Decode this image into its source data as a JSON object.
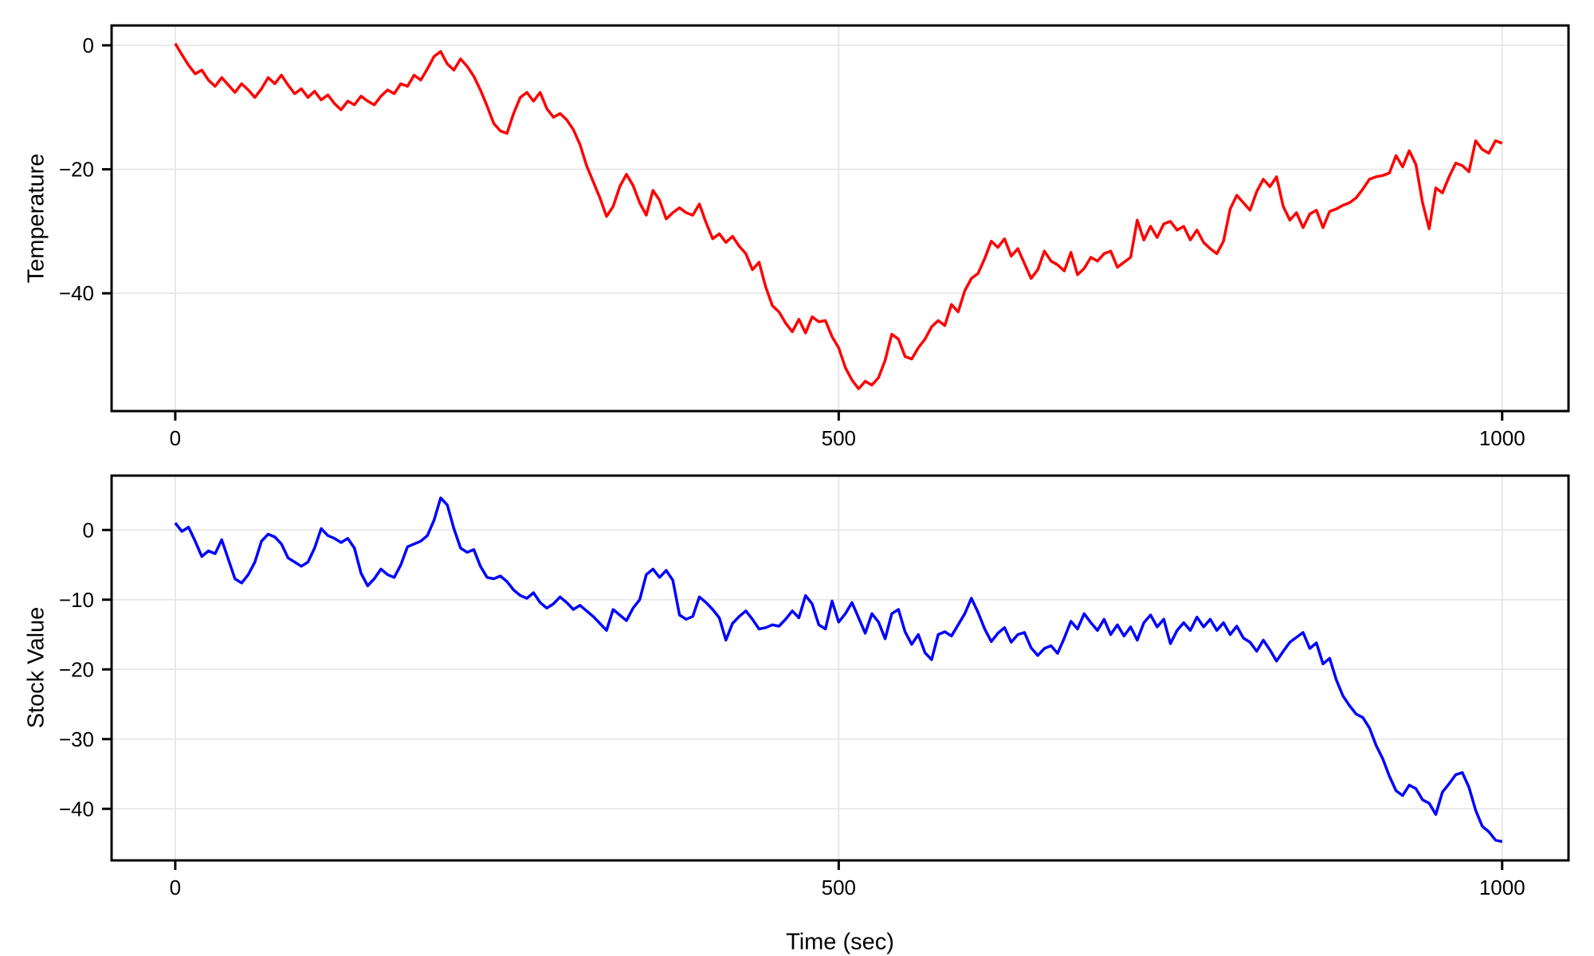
{
  "figure": {
    "background": "#ffffff",
    "grid_color": "#e6e6e6",
    "spine_color": "#000000",
    "tick_color": "#000000"
  },
  "chart_data": [
    {
      "type": "line",
      "title": "",
      "xlabel": "",
      "ylabel": "Temperature",
      "series_name": "temperature",
      "color": "#ff0000",
      "line_width": 3.5,
      "grid": true,
      "legend": "none",
      "xlim": [
        -48,
        1050
      ],
      "ylim": [
        -59.0,
        3.2
      ],
      "x_ticks": [
        0,
        500,
        1000
      ],
      "y_ticks": [
        0,
        -20,
        -40
      ],
      "x_start": 0,
      "x_step": 5,
      "values": [
        0.3,
        -1.5,
        -3.2,
        -4.6,
        -4.0,
        -5.6,
        -6.6,
        -5.2,
        -6.4,
        -7.6,
        -6.2,
        -7.2,
        -8.4,
        -7.0,
        -5.2,
        -6.2,
        -4.8,
        -6.4,
        -7.8,
        -7.0,
        -8.4,
        -7.4,
        -8.8,
        -8.0,
        -9.4,
        -10.4,
        -9.0,
        -9.6,
        -8.2,
        -9.0,
        -9.6,
        -8.2,
        -7.2,
        -7.8,
        -6.2,
        -6.6,
        -4.8,
        -5.6,
        -3.8,
        -1.8,
        -1.0,
        -3.0,
        -4.0,
        -2.2,
        -3.4,
        -5.0,
        -7.2,
        -9.8,
        -12.6,
        -13.8,
        -14.2,
        -11.0,
        -8.4,
        -7.6,
        -9.0,
        -7.6,
        -10.2,
        -11.6,
        -11.0,
        -12.0,
        -13.6,
        -16.0,
        -19.4,
        -22.0,
        -24.6,
        -27.6,
        -26.0,
        -22.8,
        -20.8,
        -22.6,
        -25.4,
        -27.4,
        -23.4,
        -25.0,
        -28.0,
        -27.0,
        -26.2,
        -27.0,
        -27.4,
        -25.6,
        -28.6,
        -31.2,
        -30.4,
        -31.8,
        -30.8,
        -32.4,
        -33.6,
        -36.2,
        -35.0,
        -39.0,
        -42.0,
        -43.0,
        -44.8,
        -46.2,
        -44.2,
        -46.4,
        -43.8,
        -44.6,
        -44.4,
        -47.0,
        -48.8,
        -52.0,
        -54.0,
        -55.4,
        -54.2,
        -54.8,
        -53.6,
        -50.8,
        -46.6,
        -47.4,
        -50.2,
        -50.6,
        -48.8,
        -47.4,
        -45.4,
        -44.4,
        -45.2,
        -41.8,
        -43.0,
        -39.6,
        -37.6,
        -36.8,
        -34.4,
        -31.6,
        -32.6,
        -31.2,
        -34.0,
        -32.8,
        -35.2,
        -37.6,
        -36.2,
        -33.2,
        -34.8,
        -35.4,
        -36.4,
        -33.4,
        -37.0,
        -36.0,
        -34.2,
        -34.8,
        -33.6,
        -33.2,
        -35.8,
        -35.0,
        -34.2,
        -28.2,
        -31.4,
        -29.2,
        -31.0,
        -28.8,
        -28.4,
        -29.8,
        -29.2,
        -31.4,
        -29.8,
        -31.8,
        -32.8,
        -33.6,
        -31.6,
        -26.4,
        -24.2,
        -25.4,
        -26.6,
        -23.6,
        -21.6,
        -22.8,
        -21.2,
        -26.0,
        -28.2,
        -27.0,
        -29.4,
        -27.2,
        -26.6,
        -29.4,
        -26.8,
        -26.4,
        -25.8,
        -25.4,
        -24.6,
        -23.2,
        -21.6,
        -21.2,
        -21.0,
        -20.6,
        -17.8,
        -19.6,
        -17.0,
        -19.2,
        -25.4,
        -29.6,
        -23.0,
        -23.8,
        -21.2,
        -19.0,
        -19.4,
        -20.4,
        -15.4,
        -16.8,
        -17.4,
        -15.4,
        -15.8
      ]
    },
    {
      "type": "line",
      "title": "",
      "xlabel": "Time (sec)",
      "ylabel": "Stock Value",
      "series_name": "stock-value",
      "color": "#0000ff",
      "line_width": 3.5,
      "grid": true,
      "legend": "none",
      "xlim": [
        -48,
        1050
      ],
      "ylim": [
        -47.4,
        7.8
      ],
      "x_ticks": [
        0,
        500,
        1000
      ],
      "y_ticks": [
        0,
        -10,
        -20,
        -30,
        -40
      ],
      "x_start": 0,
      "x_step": 5,
      "values": [
        1.0,
        -0.2,
        0.4,
        -1.6,
        -3.8,
        -3.0,
        -3.4,
        -1.4,
        -4.2,
        -7.0,
        -7.6,
        -6.4,
        -4.6,
        -1.6,
        -0.6,
        -1.0,
        -2.0,
        -4.0,
        -4.6,
        -5.2,
        -4.6,
        -2.6,
        0.2,
        -0.8,
        -1.2,
        -1.8,
        -1.2,
        -2.6,
        -6.2,
        -8.0,
        -7.0,
        -5.6,
        -6.4,
        -6.8,
        -5.0,
        -2.4,
        -2.0,
        -1.6,
        -0.8,
        1.4,
        4.6,
        3.6,
        0.2,
        -2.6,
        -3.2,
        -2.8,
        -5.2,
        -6.8,
        -7.0,
        -6.6,
        -7.4,
        -8.6,
        -9.4,
        -9.8,
        -9.0,
        -10.4,
        -11.2,
        -10.6,
        -9.6,
        -10.4,
        -11.4,
        -10.8,
        -11.6,
        -12.4,
        -13.4,
        -14.4,
        -11.4,
        -12.2,
        -13.0,
        -11.2,
        -10.0,
        -6.4,
        -5.6,
        -6.8,
        -5.8,
        -7.2,
        -12.2,
        -12.8,
        -12.4,
        -9.6,
        -10.4,
        -11.4,
        -12.6,
        -15.8,
        -13.4,
        -12.4,
        -11.6,
        -12.8,
        -14.2,
        -14.0,
        -13.6,
        -13.8,
        -12.8,
        -11.6,
        -12.6,
        -9.4,
        -10.6,
        -13.6,
        -14.2,
        -10.2,
        -13.2,
        -12.0,
        -10.4,
        -12.6,
        -14.8,
        -12.0,
        -13.2,
        -15.6,
        -12.0,
        -11.4,
        -14.6,
        -16.4,
        -15.0,
        -17.6,
        -18.6,
        -15.0,
        -14.6,
        -15.2,
        -13.6,
        -12.0,
        -9.8,
        -11.8,
        -14.2,
        -16.0,
        -14.8,
        -14.0,
        -16.1,
        -15.0,
        -14.7,
        -16.9,
        -18.0,
        -17.0,
        -16.6,
        -17.7,
        -15.5,
        -13.1,
        -14.2,
        -12.0,
        -13.3,
        -14.4,
        -12.8,
        -15.0,
        -13.6,
        -15.2,
        -13.9,
        -15.8,
        -13.3,
        -12.2,
        -13.9,
        -12.8,
        -16.3,
        -14.4,
        -13.3,
        -14.4,
        -12.5,
        -13.9,
        -12.8,
        -14.4,
        -13.3,
        -15.0,
        -13.8,
        -15.5,
        -16.1,
        -17.4,
        -15.8,
        -17.2,
        -18.8,
        -17.4,
        -16.1,
        -15.4,
        -14.7,
        -17.0,
        -16.2,
        -19.2,
        -18.4,
        -21.5,
        -23.8,
        -25.2,
        -26.4,
        -26.9,
        -28.4,
        -30.9,
        -32.8,
        -35.3,
        -37.4,
        -38.1,
        -36.6,
        -37.1,
        -38.7,
        -39.2,
        -40.8,
        -37.6,
        -36.4,
        -35.1,
        -34.8,
        -36.9,
        -40.2,
        -42.5,
        -43.3,
        -44.5,
        -44.7
      ]
    }
  ]
}
